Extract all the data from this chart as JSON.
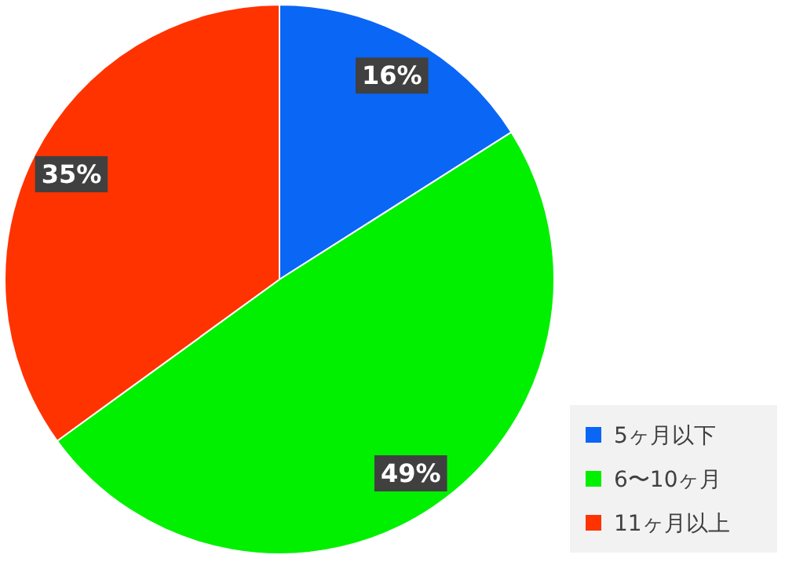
{
  "chart_data": {
    "type": "pie",
    "categories": [
      "5ヶ月以下",
      "6〜10ヶ月",
      "11ヶ月以上"
    ],
    "values": [
      16,
      49,
      35
    ],
    "value_labels": [
      "16%",
      "49%",
      "35%"
    ],
    "colors": [
      "#0a66f5",
      "#00f000",
      "#ff3300"
    ],
    "legend": "bottom right"
  }
}
